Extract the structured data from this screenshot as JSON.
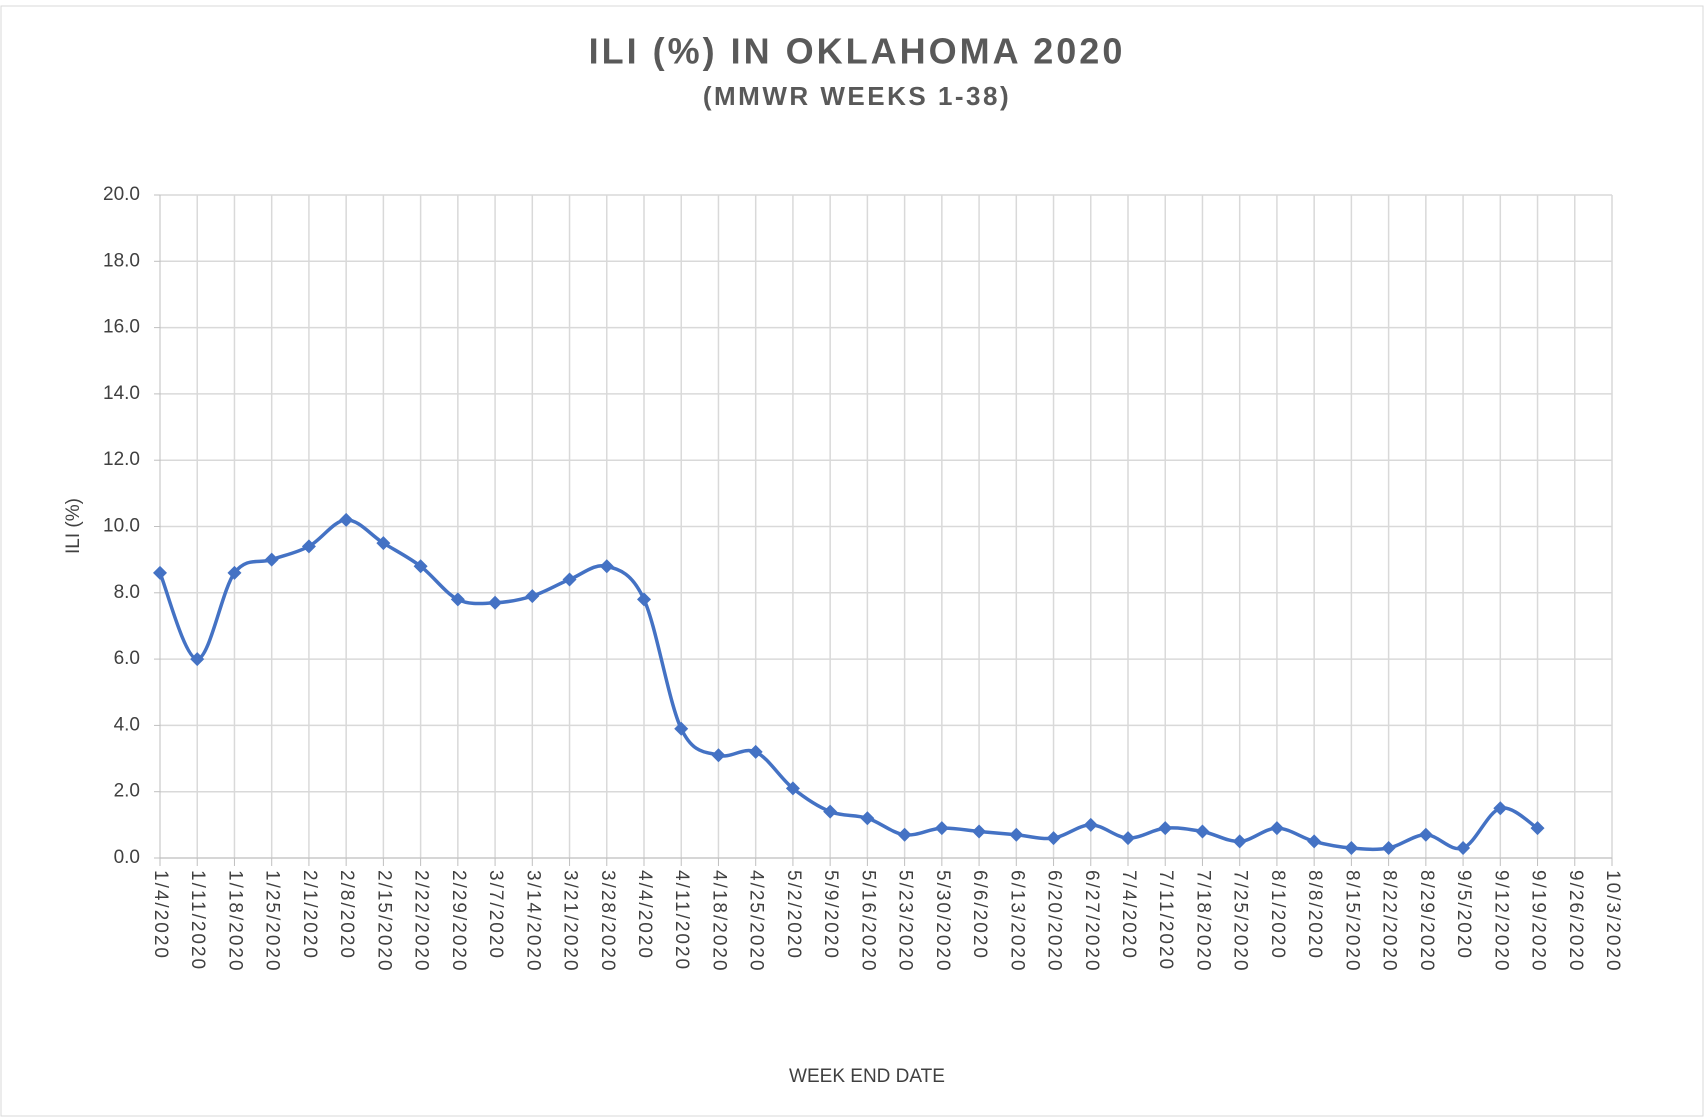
{
  "chart_data": {
    "type": "line",
    "title": "ILI (%) IN OKLAHOMA 2020",
    "subtitle": "(MMWR WEEKS 1-38)",
    "x_label": "WEEK END DATE",
    "y_label": "ILI (%)",
    "categories": [
      "1/4/2020",
      "1/11/2020",
      "1/18/2020",
      "1/25/2020",
      "2/1/2020",
      "2/8/2020",
      "2/15/2020",
      "2/22/2020",
      "2/29/2020",
      "3/7/2020",
      "3/14/2020",
      "3/21/2020",
      "3/28/2020",
      "4/4/2020",
      "4/11/2020",
      "4/18/2020",
      "4/25/2020",
      "5/2/2020",
      "5/9/2020",
      "5/16/2020",
      "5/23/2020",
      "5/30/2020",
      "6/6/2020",
      "6/13/2020",
      "6/20/2020",
      "6/27/2020",
      "7/4/2020",
      "7/11/2020",
      "7/18/2020",
      "7/25/2020",
      "8/1/2020",
      "8/8/2020",
      "8/15/2020",
      "8/22/2020",
      "8/29/2020",
      "9/5/2020",
      "9/12/2020",
      "9/19/2020",
      "9/26/2020",
      "10/3/2020"
    ],
    "values": [
      8.6,
      6.0,
      8.6,
      9.0,
      9.4,
      10.2,
      9.5,
      8.8,
      7.8,
      7.7,
      7.9,
      8.4,
      8.8,
      7.8,
      3.9,
      3.1,
      3.2,
      2.1,
      1.4,
      1.2,
      0.7,
      0.9,
      0.8,
      0.7,
      0.6,
      1.0,
      0.6,
      0.9,
      0.8,
      0.5,
      0.9,
      0.5,
      0.3,
      0.3,
      0.7,
      0.3,
      1.5,
      0.9,
      null,
      null
    ],
    "color": "#4472c4",
    "ylim": [
      0,
      20
    ],
    "yticks": [
      {
        "value": 0,
        "label": "0.0"
      },
      {
        "value": 2,
        "label": "2.0"
      },
      {
        "value": 4,
        "label": "4.0"
      },
      {
        "value": 6,
        "label": "6.0"
      },
      {
        "value": 8,
        "label": "8.0"
      },
      {
        "value": 10,
        "label": "10.0"
      },
      {
        "value": 12,
        "label": "12.0"
      },
      {
        "value": 14,
        "label": "14.0"
      },
      {
        "value": 16,
        "label": "16.0"
      },
      {
        "value": 18,
        "label": "18.0"
      },
      {
        "value": 20,
        "label": "20.0"
      }
    ],
    "grid": true
  }
}
